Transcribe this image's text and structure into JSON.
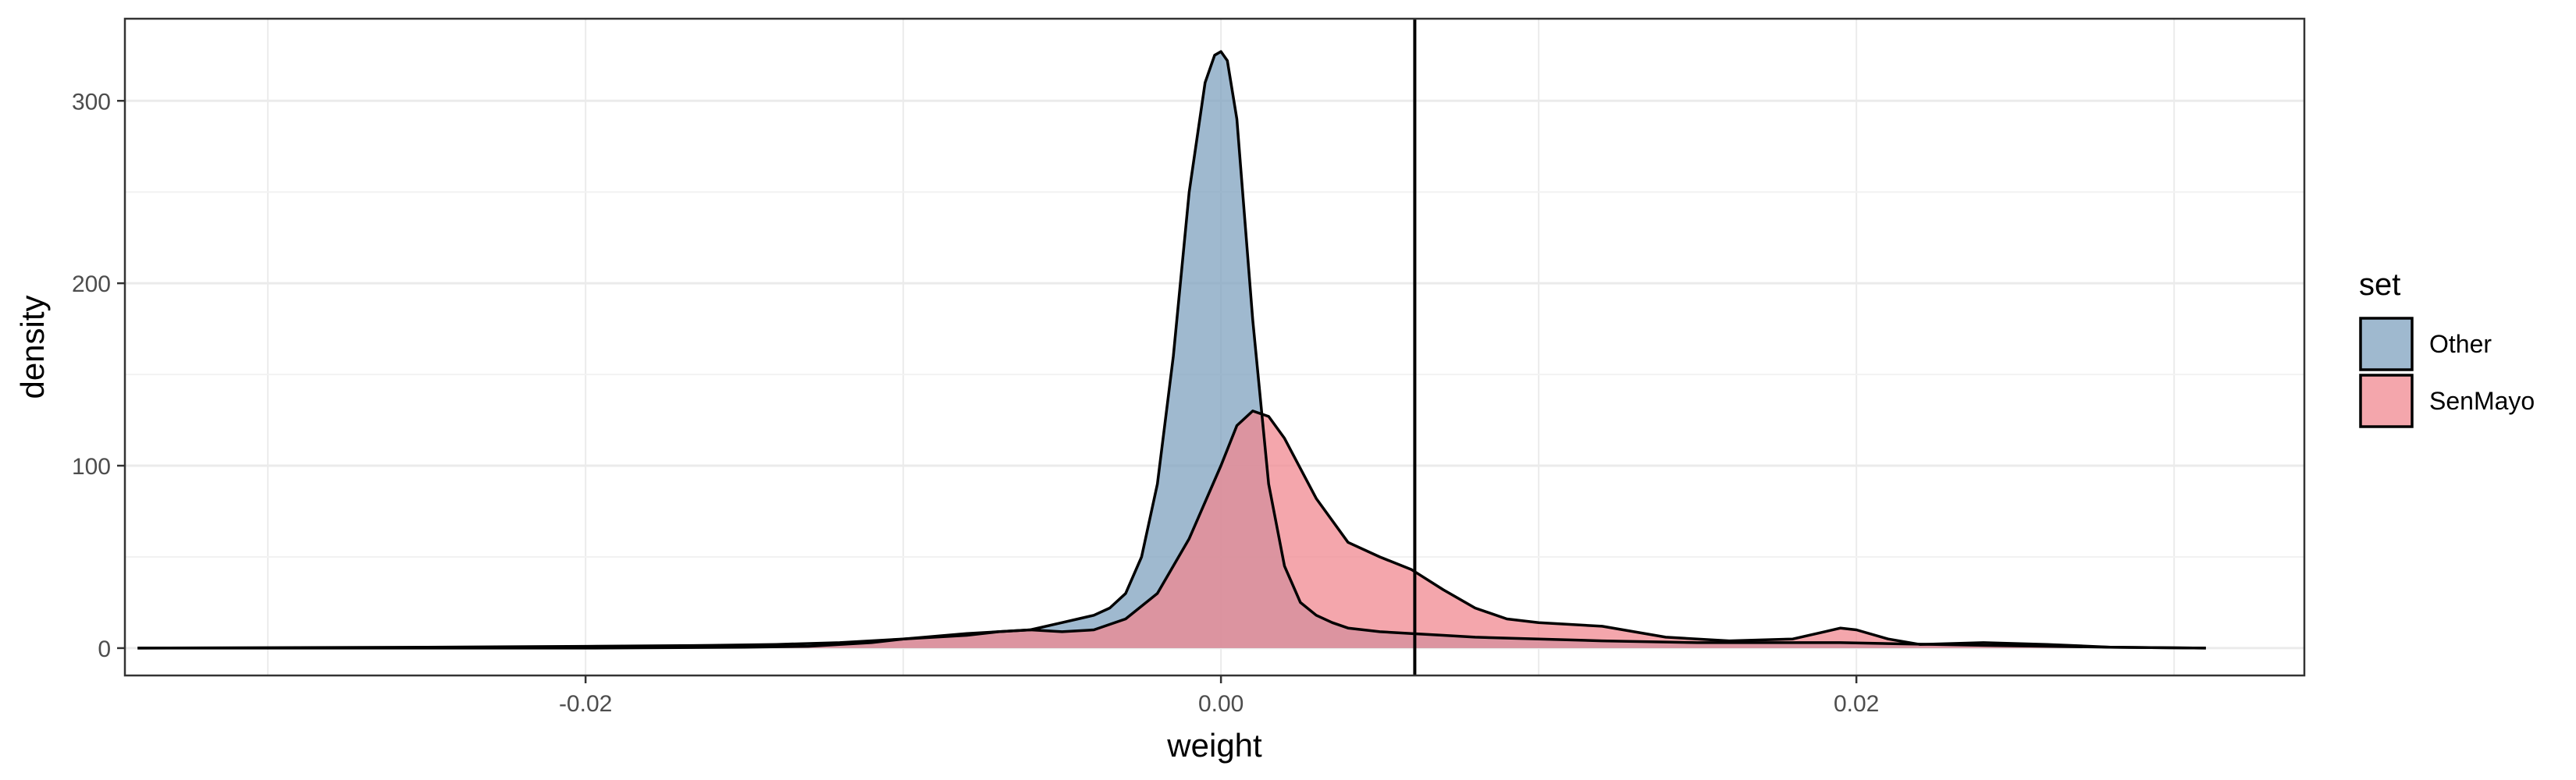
{
  "chart_data": {
    "type": "area",
    "xlabel": "weight",
    "ylabel": "density",
    "xlim": [
      -0.0345,
      0.0341
    ],
    "ylim": [
      -15,
      345
    ],
    "x_ticks": [
      -0.03,
      -0.02,
      -0.01,
      0.0,
      0.01,
      0.02,
      0.03
    ],
    "x_tick_labels": [
      "-0.02",
      "0.00",
      "0.02"
    ],
    "x_tick_label_values": [
      -0.02,
      0.0,
      0.02
    ],
    "y_ticks": [
      0,
      100,
      200,
      300
    ],
    "y_tick_labels": [
      "0",
      "100",
      "200",
      "300"
    ],
    "grid": true,
    "vline": {
      "x": 0.0061,
      "color": "#000000"
    },
    "legend": {
      "title": "set",
      "placement": "right"
    },
    "series": [
      {
        "name": "Other",
        "color": "#7fa2bf",
        "x": [
          -0.0341,
          -0.025,
          -0.02,
          -0.016,
          -0.014,
          -0.012,
          -0.01,
          -0.008,
          -0.006,
          -0.005,
          -0.0045,
          -0.004,
          -0.0035,
          -0.003,
          -0.0025,
          -0.002,
          -0.0015,
          -0.001,
          -0.0005,
          -0.0002,
          0.0,
          0.0002,
          0.0005,
          0.001,
          0.0015,
          0.002,
          0.0025,
          0.003,
          0.0035,
          0.004,
          0.005,
          0.006,
          0.007,
          0.008,
          0.01,
          0.012,
          0.015,
          0.018,
          0.0195,
          0.021,
          0.024,
          0.028,
          0.031
        ],
        "values": [
          0,
          0.5,
          1,
          1.5,
          2,
          3,
          5,
          8,
          10,
          14,
          16,
          18,
          22,
          30,
          50,
          90,
          160,
          250,
          310,
          325,
          327,
          322,
          290,
          180,
          90,
          45,
          25,
          18,
          14,
          11,
          9,
          8,
          7,
          6,
          5,
          4,
          3,
          3,
          3,
          2.5,
          1.5,
          0.5,
          0
        ]
      },
      {
        "name": "SenMayo",
        "color": "#f08890",
        "x": [
          -0.0341,
          -0.02,
          -0.015,
          -0.013,
          -0.012,
          -0.011,
          -0.01,
          -0.009,
          -0.008,
          -0.007,
          -0.006,
          -0.005,
          -0.004,
          -0.003,
          -0.002,
          -0.001,
          0.0,
          0.0005,
          0.001,
          0.0015,
          0.002,
          0.003,
          0.004,
          0.005,
          0.006,
          0.007,
          0.008,
          0.009,
          0.01,
          0.012,
          0.014,
          0.016,
          0.018,
          0.019,
          0.0195,
          0.02,
          0.021,
          0.022,
          0.024,
          0.026,
          0.028,
          0.031
        ],
        "values": [
          0,
          0,
          0.5,
          1,
          2,
          3,
          5,
          6,
          7,
          9,
          10,
          9,
          10,
          16,
          30,
          60,
          100,
          122,
          130,
          127,
          115,
          82,
          58,
          50,
          43,
          32,
          22,
          16,
          14,
          12,
          6,
          4,
          5,
          9,
          11,
          10,
          5,
          2,
          3,
          2,
          0.5,
          0
        ]
      }
    ]
  }
}
